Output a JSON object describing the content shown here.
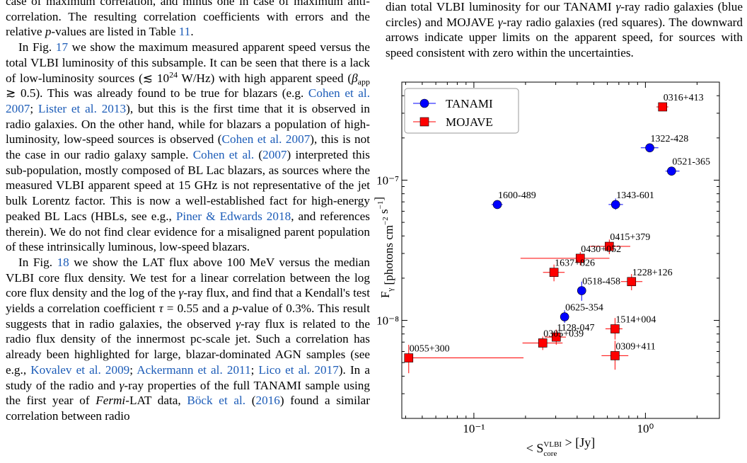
{
  "left_column": {
    "paragraphs": [
      [
        "case of maximum correlation, and minus one in case of maximum anti-correlation. The resulting correlation coefficients with errors and the relative ",
        {
          "em": "p"
        },
        "-values are listed in Table ",
        {
          "ref": "11"
        },
        "."
      ],
      [
        "In Fig. ",
        {
          "ref": "17"
        },
        " we show the maximum measured apparent speed versus the total VLBI luminosity of this subsample. It can be seen that there is a lack of low-luminosity sources (≲ 10",
        {
          "sup": "24"
        },
        " W/Hz) with high apparent speed (",
        {
          "em": "β"
        },
        {
          "sub": "app"
        },
        " ≳ 0.5). This was already found to be true for blazars (e.g. ",
        {
          "ref": "Cohen et al. 2007"
        },
        "; ",
        {
          "ref": "Lister et al. 2013"
        },
        "), but this is the first time that it is observed in radio galaxies. On the other hand, while for blazars a population of high-luminosity, low-speed sources is observed (",
        {
          "ref": "Cohen et al. 2007"
        },
        "), this is not the case in our radio galaxy sample. ",
        {
          "ref": "Cohen et al."
        },
        " (",
        {
          "ref": "2007"
        },
        ") interpreted this sub-population, mostly composed of BL Lac blazars, as sources where the measured VLBI apparent speed at 15 GHz is not representative of the jet bulk Lorentz factor. This is now a well-established fact for high-energy peaked BL Lacs (HBLs, see e.g., ",
        {
          "ref": "Piner & Edwards 2018"
        },
        ", and references therein). We do not find clear evidence for a misaligned parent population of these intrinsically luminous, low-speed blazars."
      ],
      [
        "In Fig. ",
        {
          "ref": "18"
        },
        " we show the LAT flux above 100 MeV versus the median VLBI core flux density. We test for a linear correlation between the log core flux density and the log of the ",
        {
          "em": "γ"
        },
        "-ray flux, and find that a Kendall's test yields a correlation coefficient ",
        {
          "em": "τ"
        },
        " = 0.55 and a ",
        {
          "em": "p"
        },
        "-value of 0.3%. This result suggests that in radio galaxies, the observed ",
        {
          "em": "γ"
        },
        "-ray flux is related to the radio flux density of the innermost pc-scale jet. Such a correlation has already been highlighted for large, blazar-dominated AGN samples (see e.g., ",
        {
          "ref": "Kovalev et al. 2009"
        },
        "; ",
        {
          "ref": "Ackermann et al. 2011"
        },
        "; ",
        {
          "ref": "Lico et al. 2017"
        },
        "). In a study of the radio and ",
        {
          "em": "γ"
        },
        "-ray properties of the full TANAMI sample using the first year of ",
        {
          "em": "Fermi"
        },
        "-LAT data, ",
        {
          "ref": "Böck et al."
        },
        " (",
        {
          "ref": "2016"
        },
        ") found a similar correlation between radio"
      ]
    ]
  },
  "caption": [
    "dian total VLBI luminosity for our TANAMI ",
    {
      "em": "γ"
    },
    "-ray radio galaxies (blue circles) and MOJAVE ",
    {
      "em": "γ"
    },
    "-ray radio galaxies (red squares). The downward arrows indicate upper limits on the apparent speed, for sources with speed consistent with zero within the uncertainties."
  ],
  "chart_data": {
    "type": "scatter",
    "xlabel": [
      "< S",
      {
        "sub": "core",
        "sup": "VLBI"
      },
      " > [Jy]"
    ],
    "ylabel": [
      "F",
      {
        "sub": "γ"
      },
      " [photons cm",
      {
        "sup": "−2"
      },
      " s",
      {
        "sup": "−1"
      },
      "]"
    ],
    "log_x": true,
    "log_y": true,
    "xlim": [
      0.038,
      2.7
    ],
    "ylim": [
      2e-09,
      5e-07
    ],
    "xticks": [
      {
        "value": 0.1,
        "label": "10⁻¹"
      },
      {
        "value": 1,
        "label": "10⁰"
      }
    ],
    "yticks": [
      {
        "value": 1e-08,
        "label": "10⁻⁸"
      },
      {
        "value": 1e-07,
        "label": "10⁻⁷"
      }
    ],
    "xminorticks": [
      0.04,
      0.05,
      0.06,
      0.07,
      0.08,
      0.09,
      0.2,
      0.3,
      0.4,
      0.5,
      0.6,
      0.7,
      0.8,
      0.9,
      2
    ],
    "yminorticks": [
      3e-09,
      4e-09,
      5e-09,
      6e-09,
      7e-09,
      8e-09,
      9e-09,
      2e-08,
      3e-08,
      4e-08,
      5e-08,
      6e-08,
      7e-08,
      8e-08,
      9e-08,
      2e-07,
      3e-07,
      4e-07
    ],
    "legend": "upper left",
    "series": [
      {
        "name": "TANAMI",
        "color": "#0000ff",
        "marker": "circle",
        "labels": [
          "1322-428",
          "0521-365",
          "1600-489",
          "1343-601",
          "0518-458",
          "0625-354"
        ],
        "x": [
          1.06,
          1.42,
          0.137,
          0.67,
          0.425,
          0.338
        ],
        "values": [
          1.7e-07,
          1.16e-07,
          6.7e-08,
          6.7e-08,
          1.63e-08,
          1.06e-08
        ],
        "xerr": [
          [
            0.12,
            0.13
          ],
          [
            0.11,
            0.16
          ],
          [
            0.01,
            0.01
          ],
          [
            0.06,
            0.07
          ],
          [
            0.01,
            0.01
          ],
          [
            0.016,
            0.017
          ]
        ],
        "yerr": [
          [
            1e-08,
            1e-08
          ],
          [
            5e-09,
            5e-09
          ],
          [
            3e-09,
            3e-09
          ],
          [
            5.5e-09,
            7e-09
          ],
          [
            2.5e-09,
            2.6e-09
          ],
          [
            1e-09,
            1.2e-09
          ]
        ]
      },
      {
        "name": "MOJAVE",
        "color": "#ff0000",
        "marker": "square",
        "labels": [
          "0316+413",
          "0415+379",
          "0430+052",
          "1637+826",
          "1228+126",
          "1514+004",
          "1128-047",
          "0305+039",
          "0309+411",
          "0055+300"
        ],
        "x": [
          1.26,
          0.616,
          0.417,
          0.293,
          0.83,
          0.665,
          0.302,
          0.252,
          0.665,
          0.0417
        ],
        "values": [
          3.33e-07,
          3.37e-08,
          2.77e-08,
          2.2e-08,
          1.89e-08,
          8.7e-09,
          7.6e-09,
          6.9e-09,
          5.6e-09,
          5.4e-09
        ],
        "xerr": [
          [
            0.1,
            0.1
          ],
          [
            0.14,
            0.2
          ],
          [
            0.23,
            0.2
          ],
          [
            0.04,
            0.045
          ],
          [
            0.11,
            0.13
          ],
          [
            0.08,
            0.07
          ],
          [
            0.043,
            0.042
          ],
          [
            0.06,
            0.077
          ],
          [
            0.11,
            0.13
          ],
          [
            0.002,
            0.153
          ]
        ],
        "yerr": [
          [
            2.2e-08,
            2.2e-08
          ],
          [
            4e-09,
            4e-09
          ],
          [
            3e-09,
            3e-09
          ],
          [
            3e-09,
            3e-09
          ],
          [
            2.5e-09,
            2.5e-09
          ],
          [
            1.4e-09,
            1.7e-09
          ],
          [
            9e-10,
            1e-09
          ],
          [
            7.5e-10,
            7.6e-10
          ],
          [
            1.15e-09,
            1.55e-09
          ],
          [
            1.2e-09,
            1.3e-09
          ]
        ]
      }
    ]
  }
}
